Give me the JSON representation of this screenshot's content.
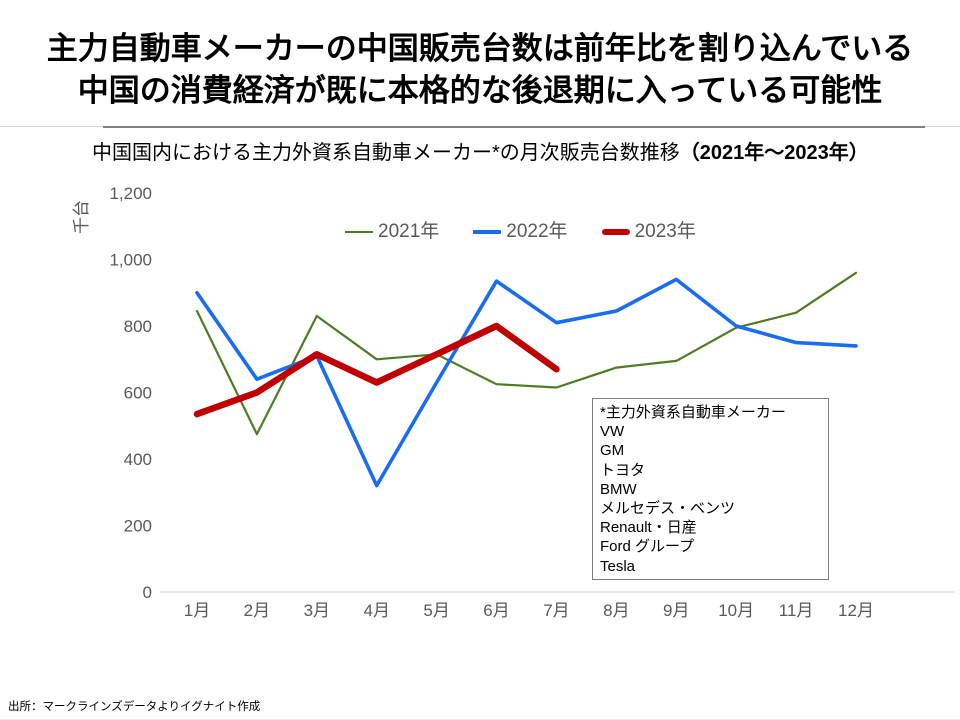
{
  "slide": {
    "title_line1": "主力自動車メーカーの中国販売台数は前年比を割り込んでいる",
    "title_line2": "中国の消費経済が既に本格的な後退期に入っている可能性",
    "subtitle_main": "中国国内における主力外資系自動車メーカー*の月次販売台数推移",
    "subtitle_range": "（2021年～2023年）",
    "source": "出所：マークラインズデータよりイグナイト作成"
  },
  "chart_data": {
    "type": "line",
    "title": "中国国内における主力外資系自動車メーカー*の月次販売台数推移（2021年～2023年）",
    "xlabel": "",
    "ylabel": "千台",
    "ylim": [
      0,
      1200
    ],
    "ytick_step": 200,
    "grid": false,
    "legend_position": "top-center",
    "categories": [
      "1月",
      "2月",
      "3月",
      "4月",
      "5月",
      "6月",
      "7月",
      "8月",
      "9月",
      "10月",
      "11月",
      "12月"
    ],
    "series": [
      {
        "name": "2021年",
        "color": "#4e7c24",
        "stroke_width": 2.2,
        "values": [
          845,
          475,
          830,
          700,
          715,
          625,
          615,
          675,
          695,
          795,
          840,
          960
        ]
      },
      {
        "name": "2022年",
        "color": "#1a6cf0",
        "stroke_width": 3.6,
        "values": [
          900,
          640,
          710,
          320,
          630,
          935,
          810,
          845,
          940,
          800,
          750,
          740
        ]
      },
      {
        "name": "2023年",
        "color": "#c00000",
        "stroke_width": 6.5,
        "values": [
          535,
          600,
          715,
          630,
          715,
          800,
          670
        ]
      }
    ],
    "axis_color": "#d9d9d9",
    "tick_label_color": "#595959"
  },
  "annotation": {
    "title": "*主力外資系自動車メーカー",
    "makers": [
      "VW",
      "GM",
      "トヨタ",
      "BMW",
      "メルセデス・ベンツ",
      "Renault・日産",
      "Ford グループ",
      "Tesla"
    ]
  }
}
